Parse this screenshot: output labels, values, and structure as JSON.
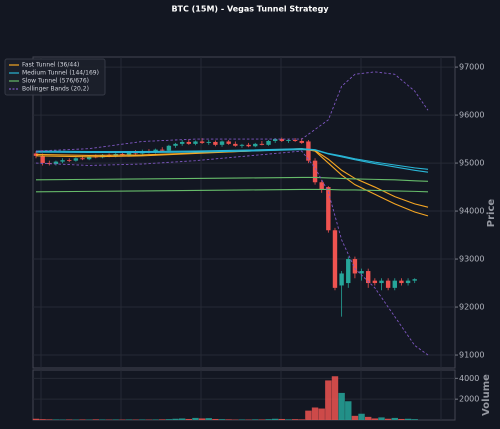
{
  "chart_data": {
    "type": "candlestick",
    "title": "BTC (15M) - Vegas Tunnel Strategy",
    "ylabel": "Price",
    "ylim": [
      90730,
      97210
    ],
    "yticks": [
      91000,
      92000,
      93000,
      94000,
      95000,
      96000,
      97000
    ],
    "grid": true,
    "legend": "upper left",
    "up_color": "#26a69a",
    "down_color": "#ef5350",
    "open": [
      95200,
      95150,
      95000,
      94980,
      95030,
      95060,
      95050,
      95100,
      95080,
      95140,
      95120,
      95170,
      95140,
      95190,
      95170,
      95230,
      95200,
      95250,
      95220,
      95280,
      95260,
      95360,
      95400,
      95440,
      95400,
      95450,
      95420,
      95440,
      95380,
      95450,
      95400,
      95360,
      95380,
      95350,
      95400,
      95380,
      95460,
      95500,
      95460,
      95480,
      95460,
      95450,
      95050,
      94600,
      94500,
      93600,
      92450,
      92500,
      93000,
      92700,
      92750,
      92550,
      92500,
      92550,
      92400,
      92550,
      92500,
      92550
    ],
    "high": [
      95250,
      95200,
      95050,
      95050,
      95100,
      95100,
      95120,
      95150,
      95160,
      95180,
      95190,
      95200,
      95210,
      95240,
      95250,
      95270,
      95280,
      95290,
      95300,
      95330,
      95380,
      95420,
      95480,
      95500,
      95470,
      95520,
      95480,
      95470,
      95470,
      95480,
      95450,
      95400,
      95420,
      95420,
      95460,
      95480,
      95520,
      95530,
      95500,
      95520,
      95520,
      95480,
      95100,
      94650,
      94520,
      93650,
      92750,
      93050,
      93050,
      92800,
      92800,
      92600,
      92600,
      92600,
      92600,
      92600,
      92600,
      92600
    ],
    "low": [
      95100,
      94950,
      94950,
      94950,
      95000,
      95020,
      95030,
      95060,
      95060,
      95100,
      95100,
      95120,
      95120,
      95150,
      95150,
      95180,
      95180,
      95200,
      95200,
      95240,
      95240,
      95320,
      95360,
      95380,
      95370,
      95400,
      95380,
      95350,
      95340,
      95380,
      95340,
      95320,
      95330,
      95330,
      95370,
      95360,
      95420,
      95440,
      95420,
      95440,
      95400,
      95000,
      94550,
      94380,
      93550,
      92350,
      91800,
      92400,
      92600,
      92550,
      92400,
      92450,
      92350,
      92350,
      92350,
      92450,
      92450,
      92500
    ],
    "close": [
      95150,
      95000,
      94980,
      95030,
      95060,
      95050,
      95100,
      95080,
      95140,
      95120,
      95170,
      95140,
      95190,
      95170,
      95230,
      95200,
      95250,
      95220,
      95280,
      95260,
      95360,
      95400,
      95440,
      95400,
      95450,
      95420,
      95440,
      95380,
      95450,
      95400,
      95360,
      95380,
      95350,
      95400,
      95380,
      95460,
      95500,
      95460,
      95480,
      95460,
      95420,
      95050,
      94600,
      94450,
      93600,
      92400,
      92700,
      93000,
      92700,
      92750,
      92500,
      92500,
      92550,
      92400,
      92550,
      92500,
      92550,
      92580
    ],
    "lines": {
      "x": [
        0,
        8,
        16,
        24,
        32,
        40,
        42,
        44,
        46,
        48,
        51,
        54,
        57,
        59
      ],
      "series": [
        {
          "name": "Fast Tunnel (36/44)",
          "color": "#f5a623",
          "style": "solid",
          "values": [
            [
              95150,
              95130,
              95150,
              95200,
              95250,
              95300,
              95250,
              95000,
              94750,
              94550,
              94350,
              94150,
              93980,
              93900
            ],
            [
              95180,
              95160,
              95170,
              95210,
              95250,
              95290,
              95260,
              95080,
              94850,
              94680,
              94500,
              94300,
              94150,
              94080
            ]
          ]
        },
        {
          "name": "Medium Tunnel (144/169)",
          "color": "#29b6d6",
          "style": "solid",
          "values": [
            [
              95250,
              95240,
              95240,
              95250,
              95270,
              95300,
              95280,
              95200,
              95150,
              95090,
              95020,
              94960,
              94900,
              94870
            ],
            [
              95230,
              95220,
              95220,
              95230,
              95250,
              95280,
              95270,
              95190,
              95130,
              95070,
              94990,
              94920,
              94850,
              94810
            ]
          ]
        },
        {
          "name": "Slow Tunnel (576/676)",
          "color": "#66bb6a",
          "style": "solid",
          "values": [
            [
              94650,
              94660,
              94670,
              94680,
              94690,
              94700,
              94700,
              94690,
              94680,
              94670,
              94660,
              94650,
              94630,
              94620
            ],
            [
              94400,
              94410,
              94420,
              94430,
              94440,
              94450,
              94450,
              94450,
              94440,
              94440,
              94430,
              94420,
              94410,
              94400
            ]
          ]
        },
        {
          "name": "Bollinger Bands (20,2)",
          "color": "#7e57c2",
          "style": "dashed",
          "values": [
            [
              95250,
              95300,
              95450,
              95500,
              95500,
              95500,
              95700,
              95900,
              96600,
              96850,
              96900,
              96850,
              96500,
              96100
            ],
            [
              95000,
              94950,
              94980,
              95050,
              95150,
              95250,
              94900,
              94400,
              93400,
              92800,
              92400,
              91800,
              91200,
              91000
            ]
          ]
        }
      ]
    },
    "volume": {
      "ylabel": "Volume",
      "ylim": [
        0,
        4800
      ],
      "yticks": [
        2000,
        4000
      ],
      "values": [
        120,
        80,
        60,
        50,
        40,
        50,
        40,
        50,
        40,
        60,
        50,
        40,
        50,
        40,
        50,
        40,
        50,
        40,
        50,
        60,
        80,
        120,
        150,
        100,
        200,
        150,
        180,
        100,
        80,
        60,
        40,
        50,
        40,
        60,
        50,
        80,
        120,
        100,
        60,
        80,
        60,
        900,
        1200,
        1100,
        3800,
        4200,
        2600,
        1800,
        400,
        600,
        300,
        150,
        250,
        120,
        200,
        100,
        120,
        80
      ]
    }
  }
}
